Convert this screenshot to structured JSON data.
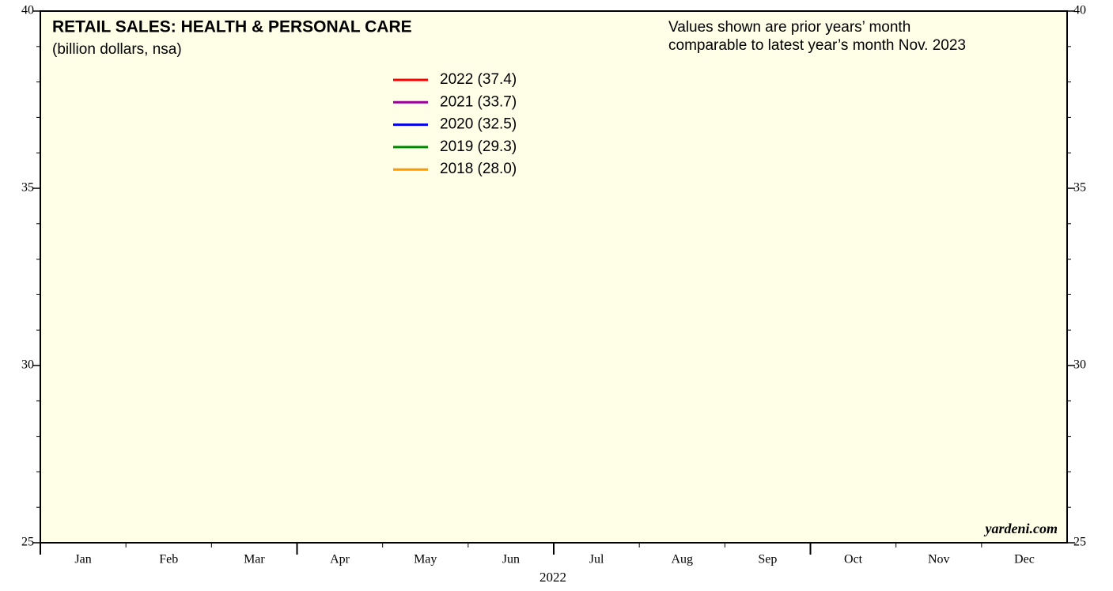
{
  "chart_data": {
    "type": "line",
    "title": "RETAIL SALES: HEALTH & PERSONAL CARE",
    "subtitle": "(billion dollars, nsa)",
    "annotation": [
      "Values shown are prior years’ month",
      "comparable to latest year’s month Nov. 2023"
    ],
    "source": "yardeni.com",
    "xlabel": "2022",
    "categories": [
      "Jan",
      "Feb",
      "Mar",
      "Apr",
      "May",
      "Jun",
      "Jul",
      "Aug",
      "Sep",
      "Oct",
      "Nov",
      "Dec"
    ],
    "series": [
      {
        "name": "2022 (37.4)",
        "color": "#ff0000"
      },
      {
        "name": "2021 (33.7)",
        "color": "#990099"
      },
      {
        "name": "2020 (32.5)",
        "color": "#0000ee"
      },
      {
        "name": "2019 (29.3)",
        "color": "#008800"
      },
      {
        "name": "2018 (28.0)",
        "color": "#ff9900"
      }
    ],
    "ylim": [
      25,
      40
    ],
    "yticks": [
      25,
      30,
      35,
      40
    ],
    "yminorticks": [
      26,
      27,
      28,
      29,
      31,
      32,
      33,
      34,
      36,
      37,
      38,
      39
    ]
  }
}
